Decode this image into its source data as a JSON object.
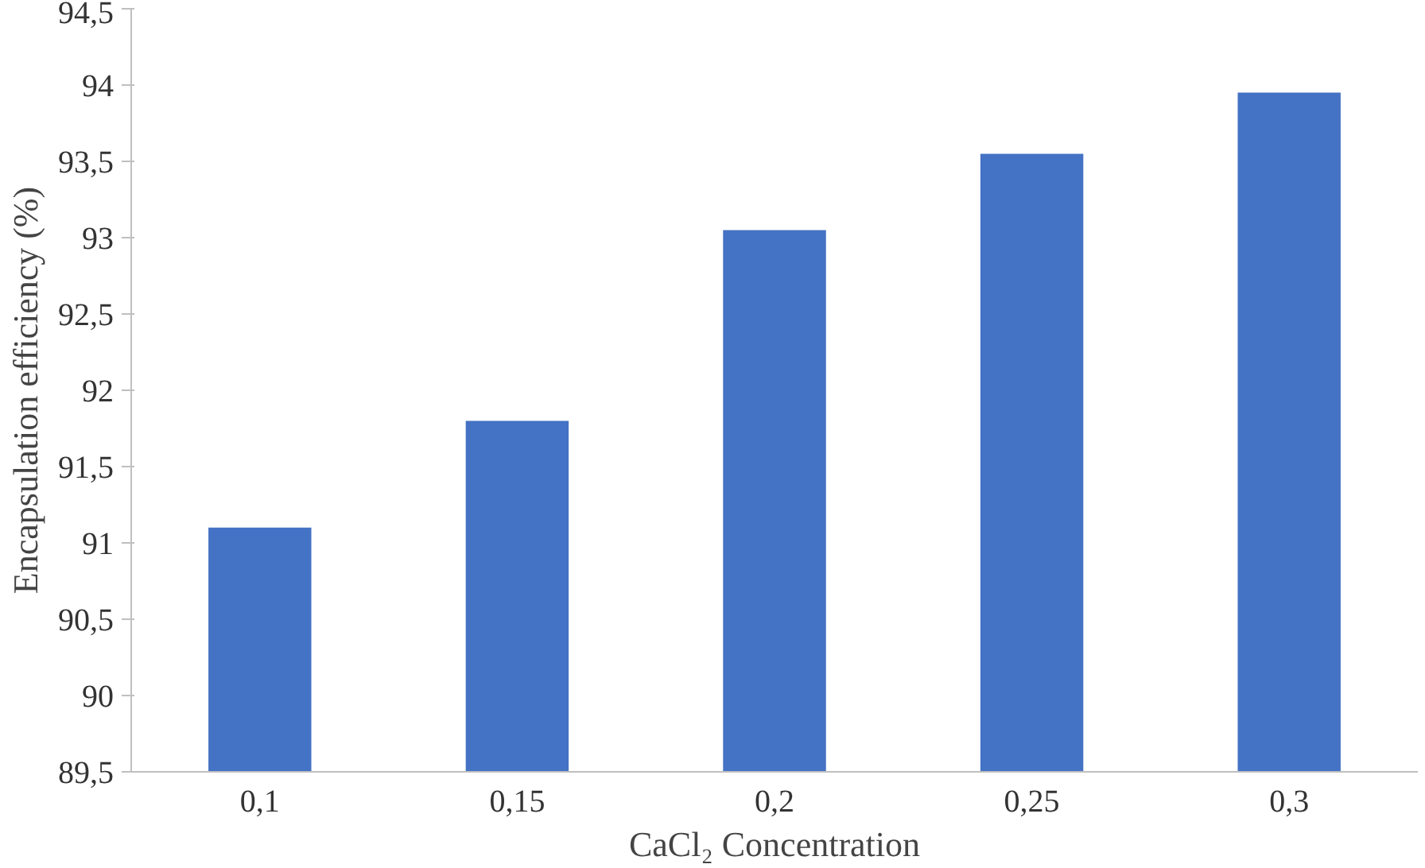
{
  "chart_data": {
    "type": "bar",
    "xlabel": "CaCl₂ Concentration",
    "ylabel": "Encapsulation efficiency (%)",
    "categories": [
      "0,1",
      "0,15",
      "0,2",
      "0,25",
      "0,3"
    ],
    "values": [
      91.1,
      91.8,
      93.05,
      93.55,
      93.95
    ],
    "color": "#4472c4",
    "ylim": [
      89.5,
      94.5
    ],
    "yticks": [
      {
        "value": 89.5,
        "label": "89,5"
      },
      {
        "value": 90,
        "label": "90"
      },
      {
        "value": 90.5,
        "label": "90,5"
      },
      {
        "value": 91,
        "label": "91"
      },
      {
        "value": 91.5,
        "label": "91,5"
      },
      {
        "value": 92,
        "label": "92"
      },
      {
        "value": 92.5,
        "label": "92,5"
      },
      {
        "value": 93,
        "label": "93"
      },
      {
        "value": 93.5,
        "label": "93,5"
      },
      {
        "value": 94,
        "label": "94"
      },
      {
        "value": 94.5,
        "label": "94,5"
      }
    ],
    "grid": false
  }
}
